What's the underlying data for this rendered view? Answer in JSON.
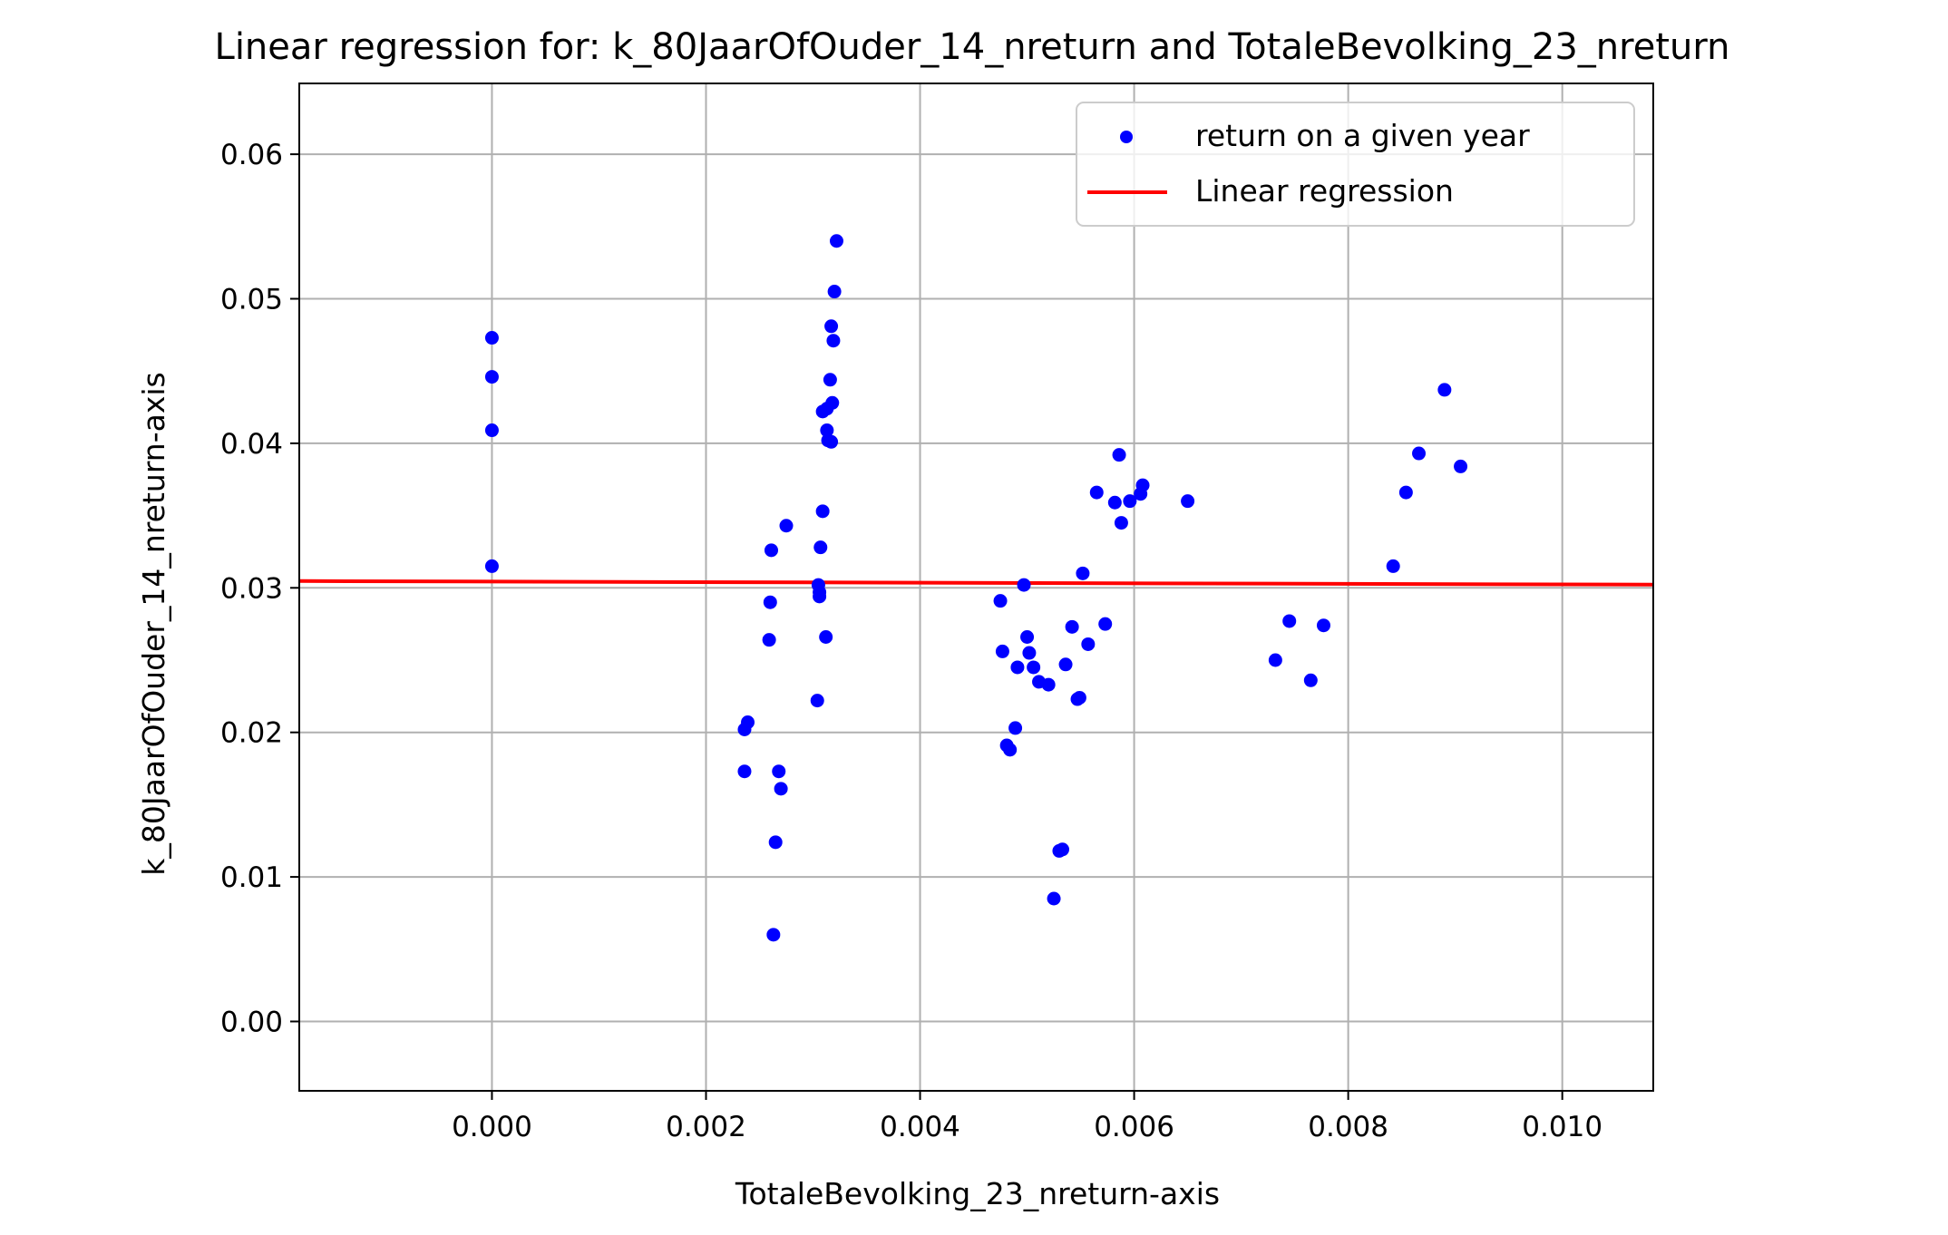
{
  "chart_data": {
    "type": "scatter",
    "title": "Linear regression for: k_80JaarOfOuder_14_nreturn and TotaleBevolking_23_nreturn",
    "xlabel": "TotaleBevolking_23_nreturn-axis",
    "ylabel": "k_80JaarOfOuder_14_nreturn-axis",
    "xlim": [
      -0.0018,
      0.01085
    ],
    "ylim": [
      -0.0048,
      0.0649
    ],
    "xticks": [
      0.0,
      0.002,
      0.004,
      0.006,
      0.008,
      0.01
    ],
    "xtick_labels": [
      "0.000",
      "0.002",
      "0.004",
      "0.006",
      "0.008",
      "0.010"
    ],
    "yticks": [
      0.0,
      0.01,
      0.02,
      0.03,
      0.04,
      0.05,
      0.06
    ],
    "ytick_labels": [
      "0.00",
      "0.01",
      "0.02",
      "0.03",
      "0.04",
      "0.05",
      "0.06"
    ],
    "grid": true,
    "legend_position": "top-right",
    "series": [
      {
        "name": "return on a given year",
        "kind": "scatter",
        "color": "#0000ff",
        "points": [
          [
            0.0,
            0.0473
          ],
          [
            0.0,
            0.0446
          ],
          [
            0.0,
            0.0409
          ],
          [
            0.0,
            0.0315
          ],
          [
            0.00236,
            0.0202
          ],
          [
            0.00239,
            0.0207
          ],
          [
            0.00236,
            0.0173
          ],
          [
            0.00259,
            0.0264
          ],
          [
            0.0026,
            0.029
          ],
          [
            0.00261,
            0.0326
          ],
          [
            0.00263,
            0.006
          ],
          [
            0.00265,
            0.0124
          ],
          [
            0.00268,
            0.0173
          ],
          [
            0.0027,
            0.0161
          ],
          [
            0.00275,
            0.0343
          ],
          [
            0.00304,
            0.0222
          ],
          [
            0.00305,
            0.0302
          ],
          [
            0.00306,
            0.0294
          ],
          [
            0.00306,
            0.0297
          ],
          [
            0.00307,
            0.0328
          ],
          [
            0.00309,
            0.0353
          ],
          [
            0.00309,
            0.0422
          ],
          [
            0.00312,
            0.0266
          ],
          [
            0.00313,
            0.0424
          ],
          [
            0.00313,
            0.0409
          ],
          [
            0.00314,
            0.0402
          ],
          [
            0.00316,
            0.0444
          ],
          [
            0.00317,
            0.0481
          ],
          [
            0.00317,
            0.0401
          ],
          [
            0.00318,
            0.0428
          ],
          [
            0.00319,
            0.0471
          ],
          [
            0.0032,
            0.0505
          ],
          [
            0.00322,
            0.054
          ],
          [
            0.00475,
            0.0291
          ],
          [
            0.00477,
            0.0256
          ],
          [
            0.00481,
            0.0191
          ],
          [
            0.00484,
            0.0188
          ],
          [
            0.00489,
            0.0203
          ],
          [
            0.00491,
            0.0245
          ],
          [
            0.00497,
            0.0302
          ],
          [
            0.005,
            0.0266
          ],
          [
            0.00502,
            0.0255
          ],
          [
            0.00506,
            0.0245
          ],
          [
            0.00511,
            0.0235
          ],
          [
            0.0052,
            0.0233
          ],
          [
            0.00525,
            0.0085
          ],
          [
            0.0053,
            0.0118
          ],
          [
            0.00533,
            0.0119
          ],
          [
            0.00536,
            0.0247
          ],
          [
            0.00542,
            0.0273
          ],
          [
            0.00547,
            0.0223
          ],
          [
            0.00549,
            0.0224
          ],
          [
            0.00552,
            0.031
          ],
          [
            0.00557,
            0.0261
          ],
          [
            0.00565,
            0.0366
          ],
          [
            0.00573,
            0.0275
          ],
          [
            0.00582,
            0.0359
          ],
          [
            0.00586,
            0.0392
          ],
          [
            0.00588,
            0.0345
          ],
          [
            0.00596,
            0.036
          ],
          [
            0.00606,
            0.0365
          ],
          [
            0.00608,
            0.0371
          ],
          [
            0.0065,
            0.036
          ],
          [
            0.00732,
            0.025
          ],
          [
            0.00745,
            0.0277
          ],
          [
            0.00765,
            0.0236
          ],
          [
            0.00777,
            0.0274
          ],
          [
            0.00842,
            0.0315
          ],
          [
            0.00854,
            0.0366
          ],
          [
            0.00866,
            0.0393
          ],
          [
            0.0089,
            0.0437
          ],
          [
            0.00905,
            0.0384
          ]
        ]
      },
      {
        "name": "Linear regression",
        "kind": "line",
        "color": "#ff0000",
        "x": [
          -0.0018,
          0.01085
        ],
        "y": [
          0.03047,
          0.03022
        ]
      }
    ]
  }
}
